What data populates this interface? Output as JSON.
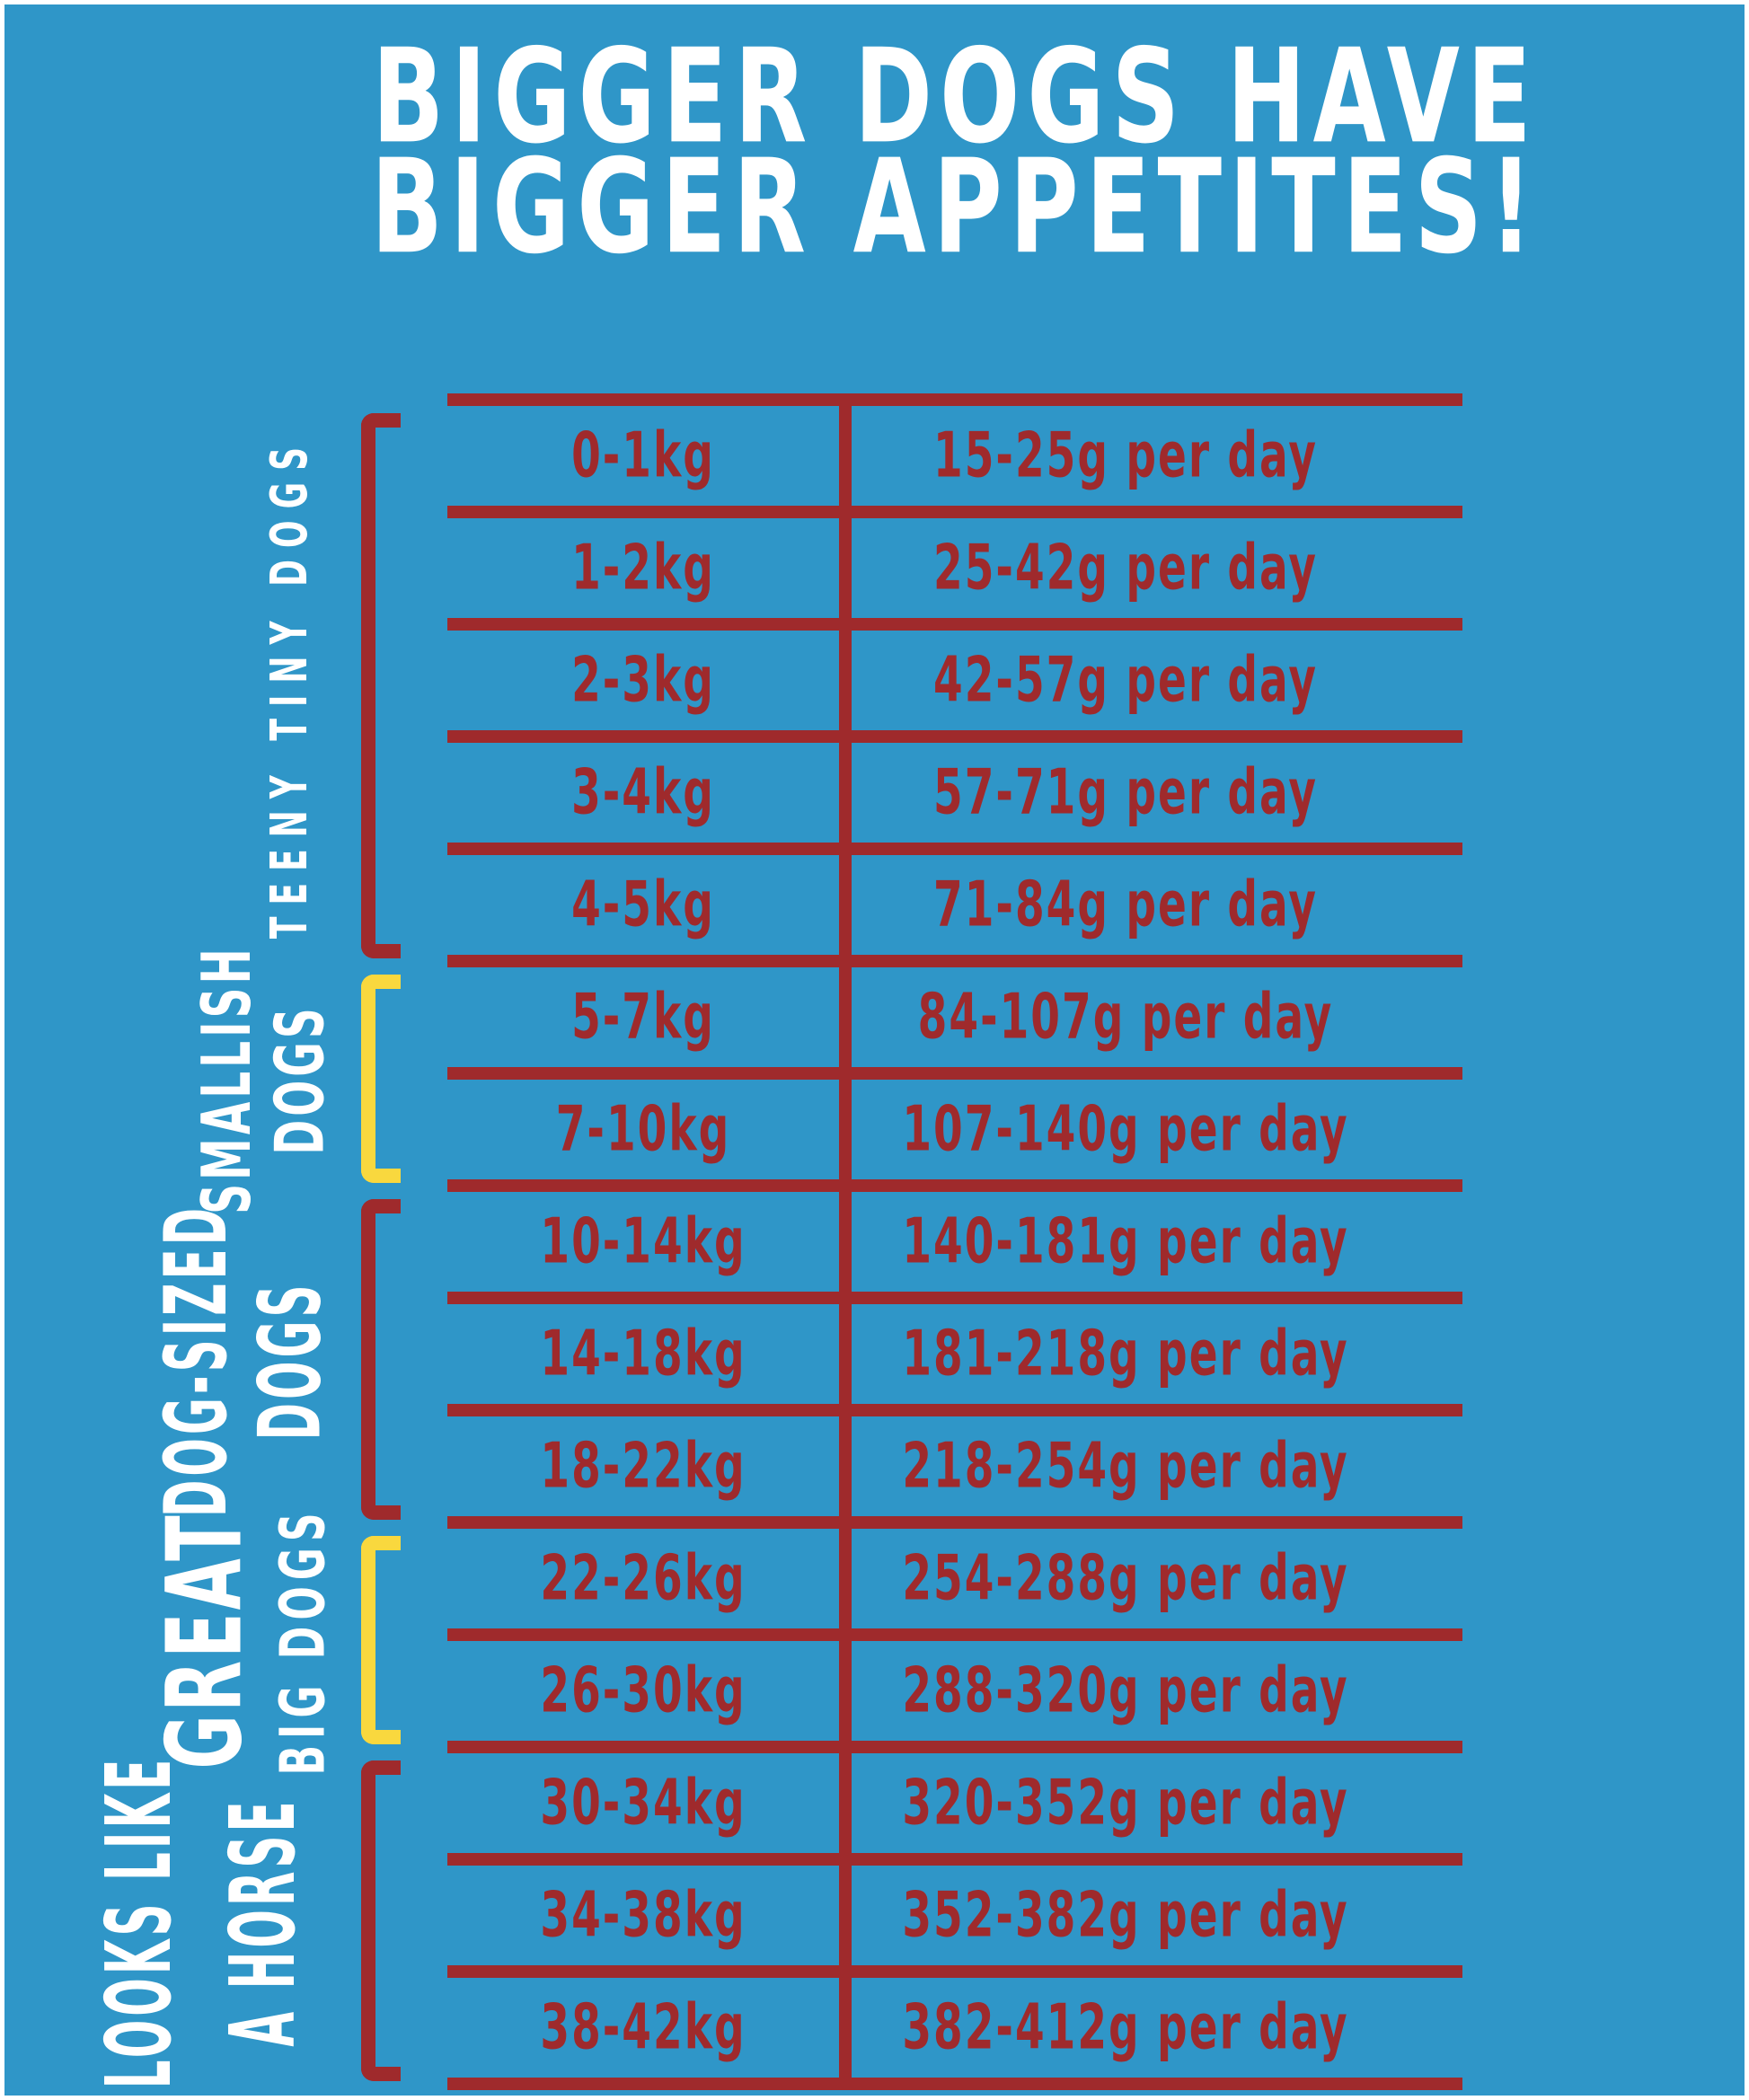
{
  "poster": {
    "title": {
      "line1": "BIGGER DOGS HAVE",
      "line2": "BIGGER APPETITES!"
    },
    "colors": {
      "background": "#2F96C8",
      "line_red": "#9F2A2C",
      "bracket_yellow": "#F9D83E",
      "label_white": "#FFFFFF"
    }
  },
  "chart_data": {
    "type": "table",
    "title": "BIGGER DOGS HAVE BIGGER APPETITES!",
    "groups": [
      {
        "label": "TEENY TINY DOGS",
        "label_lines": [
          "TEENY TINY DOGS"
        ],
        "bracket_color": "red",
        "rows": [
          {
            "weight": "0-1kg",
            "amount": "15-25g per day"
          },
          {
            "weight": "1-2kg",
            "amount": "25-42g per day"
          },
          {
            "weight": "2-3kg",
            "amount": "42-57g per day"
          },
          {
            "weight": "3-4kg",
            "amount": "57-71g per day"
          },
          {
            "weight": "4-5kg",
            "amount": "71-84g per day"
          }
        ]
      },
      {
        "label": "SMALLISH DOGS",
        "label_lines": [
          "SMALLISH",
          "DOGS"
        ],
        "bracket_color": "yellow",
        "rows": [
          {
            "weight": "5-7kg",
            "amount": "84-107g per day"
          },
          {
            "weight": "7-10kg",
            "amount": "107-140g per day"
          }
        ]
      },
      {
        "label": "DOG-SIZED DOGS",
        "label_lines": [
          "DOG-SIZED",
          "DOGS"
        ],
        "bracket_color": "red",
        "rows": [
          {
            "weight": "10-14kg",
            "amount": "140-181g per day"
          },
          {
            "weight": "14-18kg",
            "amount": "181-218g per day"
          },
          {
            "weight": "18-22kg",
            "amount": "218-254g per day"
          }
        ]
      },
      {
        "label": "GREAT BIG DOGS",
        "label_lines": [
          "GREAT",
          "BIG DOGS"
        ],
        "bracket_color": "yellow",
        "rows": [
          {
            "weight": "22-26kg",
            "amount": "254-288g per day"
          },
          {
            "weight": "26-30kg",
            "amount": "288-320g per day"
          }
        ]
      },
      {
        "label": "LOOKS LIKE A HORSE",
        "label_lines": [
          "LOOKS LIKE",
          "A HORSE"
        ],
        "bracket_color": "red",
        "rows": [
          {
            "weight": "30-34kg",
            "amount": "320-352g per day"
          },
          {
            "weight": "34-38kg",
            "amount": "352-382g per day"
          },
          {
            "weight": "38-42kg",
            "amount": "382-412g per day"
          }
        ]
      }
    ]
  }
}
